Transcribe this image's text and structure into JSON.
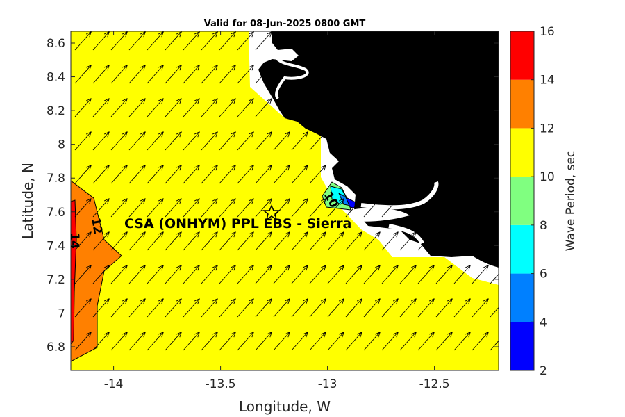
{
  "title": "Valid for 08-Jun-2025 0800 GMT",
  "x_axis": {
    "label": "Longitude, W",
    "ticks": [
      "-14",
      "-13.5",
      "-13",
      "-12.5"
    ],
    "values": [
      -14,
      -13.5,
      -13,
      -12.5
    ],
    "range": [
      -14.2,
      -12.2
    ]
  },
  "y_axis": {
    "label": "Latitude, N",
    "ticks": [
      "6.8",
      "7",
      "7.2",
      "7.4",
      "7.6",
      "7.8",
      "8",
      "8.2",
      "8.4",
      "8.6"
    ],
    "values": [
      6.8,
      7,
      7.2,
      7.4,
      7.6,
      7.8,
      8,
      8.2,
      8.4,
      8.6
    ],
    "range": [
      6.66,
      8.67
    ]
  },
  "colorbar": {
    "label": "Wave Period, sec",
    "ticks": [
      "2",
      "4",
      "6",
      "8",
      "10",
      "12",
      "14",
      "16"
    ],
    "levels": [
      2,
      4,
      6,
      8,
      10,
      12,
      14,
      16
    ],
    "colors": [
      "#0000ff",
      "#0080ff",
      "#00ffff",
      "#80ff80",
      "#ffff00",
      "#ff8000",
      "#ff0000"
    ]
  },
  "contour_labels": [
    {
      "text": "14",
      "lon": -14.17,
      "lat": 7.42,
      "rotate": 90
    },
    {
      "text": "12",
      "lon": -14.05,
      "lat": 7.52,
      "rotate": 80
    },
    {
      "text": "10",
      "lon": -12.94,
      "lat": 7.64,
      "rotate": 60
    }
  ],
  "site": {
    "label": "CSA (ONHYM) PPL EBS  - Sierra",
    "lon": -13.23,
    "lat": 7.6
  },
  "colors": {
    "land": "#000000",
    "default_zone": "#ffff00",
    "arrows": "#000000"
  },
  "wave_direction_deg": 35
}
